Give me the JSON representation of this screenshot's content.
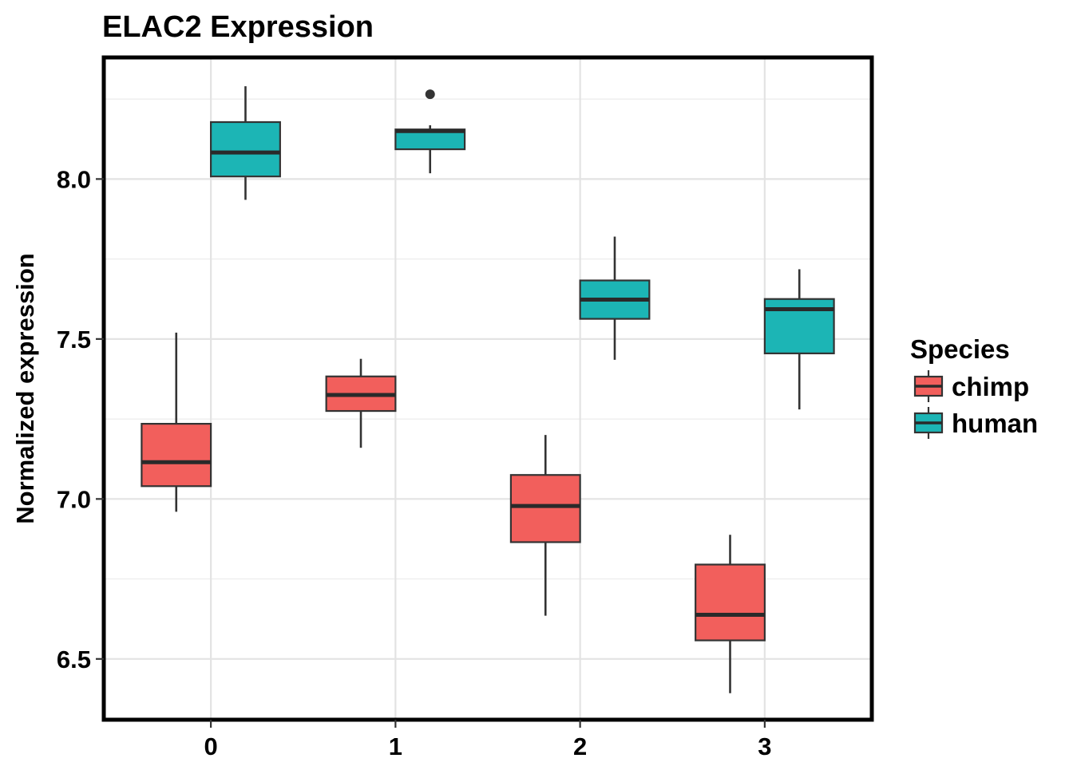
{
  "chart_data": {
    "type": "box",
    "title": "ELAC2 Expression",
    "xlabel": "",
    "ylabel": "Normalized expression",
    "categories": [
      "0",
      "1",
      "2",
      "3"
    ],
    "ylim": [
      6.31,
      8.38
    ],
    "y_ticks": [
      6.5,
      7.0,
      7.5,
      8.0
    ],
    "y_tick_labels": [
      "6.5",
      "7.0",
      "7.5",
      "8.0"
    ],
    "grid": true,
    "legend": {
      "title": "Species",
      "position": "right",
      "entries": [
        {
          "label": "chimp",
          "color": "#F25F5C"
        },
        {
          "label": "human",
          "color": "#1CB5B5"
        }
      ]
    },
    "series": [
      {
        "name": "chimp",
        "color": "#F25F5C",
        "boxes": [
          {
            "category": "0",
            "whisker_low": 6.96,
            "q1": 7.04,
            "median": 7.115,
            "q3": 7.235,
            "whisker_high": 7.52,
            "outliers": []
          },
          {
            "category": "1",
            "whisker_low": 7.16,
            "q1": 7.275,
            "median": 7.325,
            "q3": 7.383,
            "whisker_high": 7.438,
            "outliers": []
          },
          {
            "category": "2",
            "whisker_low": 6.635,
            "q1": 6.865,
            "median": 6.978,
            "q3": 7.075,
            "whisker_high": 7.2,
            "outliers": []
          },
          {
            "category": "3",
            "whisker_low": 6.393,
            "q1": 6.558,
            "median": 6.638,
            "q3": 6.795,
            "whisker_high": 6.888,
            "outliers": []
          }
        ]
      },
      {
        "name": "human",
        "color": "#1CB5B5",
        "boxes": [
          {
            "category": "0",
            "whisker_low": 7.935,
            "q1": 8.008,
            "median": 8.083,
            "q3": 8.178,
            "whisker_high": 8.29,
            "outliers": []
          },
          {
            "category": "1",
            "whisker_low": 8.018,
            "q1": 8.093,
            "median": 8.15,
            "q3": 8.155,
            "whisker_high": 8.168,
            "outliers": [
              8.265
            ]
          },
          {
            "category": "2",
            "whisker_low": 7.435,
            "q1": 7.563,
            "median": 7.623,
            "q3": 7.683,
            "whisker_high": 7.82,
            "outliers": []
          },
          {
            "category": "3",
            "whisker_low": 7.28,
            "q1": 7.455,
            "median": 7.593,
            "q3": 7.625,
            "whisker_high": 7.718,
            "outliers": []
          }
        ]
      }
    ]
  }
}
